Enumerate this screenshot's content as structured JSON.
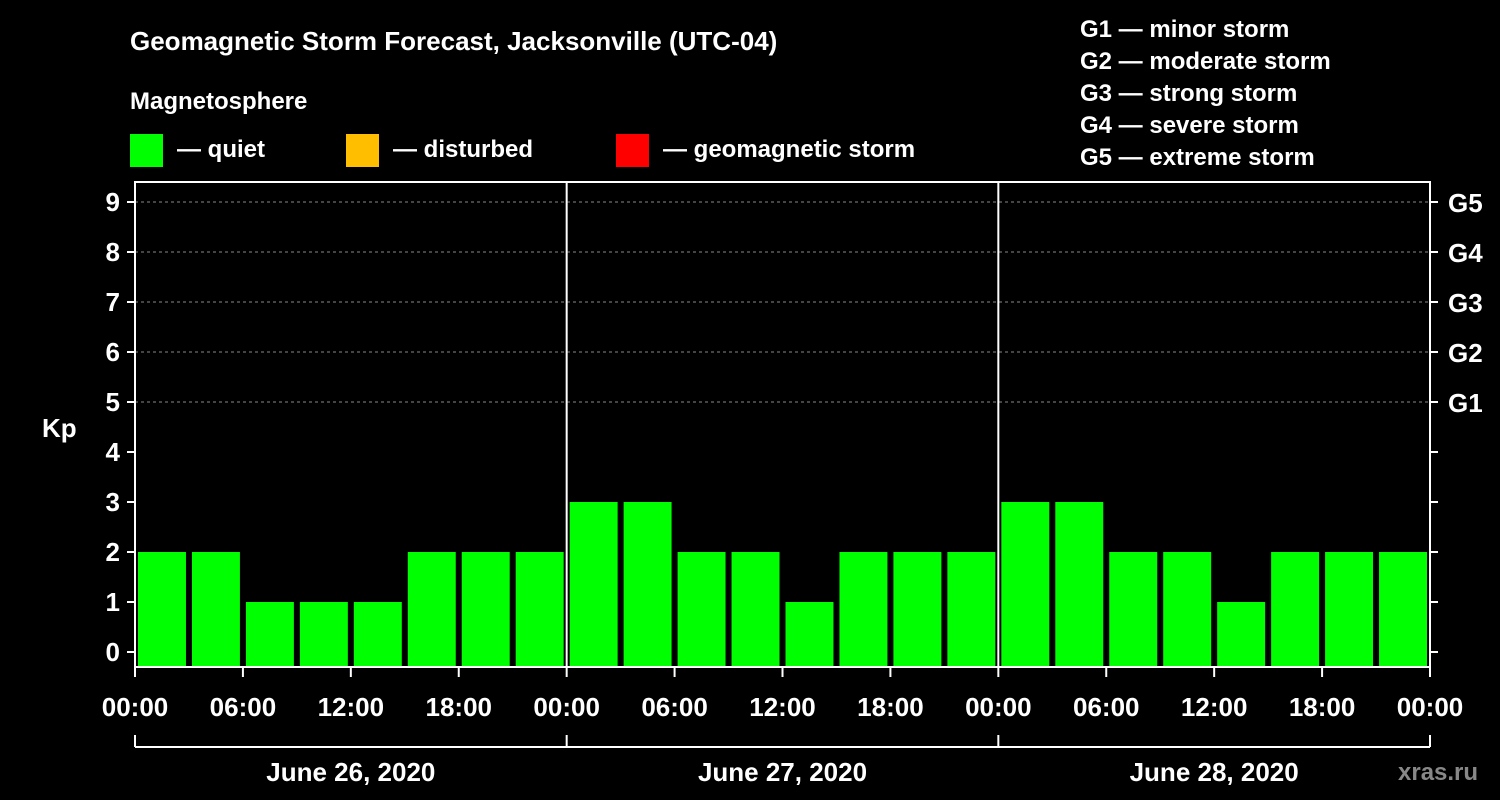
{
  "chart_data": {
    "type": "bar",
    "title": "Geomagnetic Storm Forecast, Jacksonville (UTC-04)",
    "legend_title": "Magnetosphere",
    "legend": [
      {
        "label": "— quiet",
        "color": "#00ff00"
      },
      {
        "label": "— disturbed",
        "color": "#ffbf00"
      },
      {
        "label": "— geomagnetic storm",
        "color": "#ff0000"
      }
    ],
    "g_scale": [
      "G1 — minor storm",
      "G2 — moderate storm",
      "G3 — strong storm",
      "G4 — severe storm",
      "G5 — extreme storm"
    ],
    "ylabel": "Kp",
    "ylim": [
      0,
      9
    ],
    "y_ticks": [
      0,
      1,
      2,
      3,
      4,
      5,
      6,
      7,
      8,
      9
    ],
    "right_labels": [
      {
        "kp": 5,
        "label": "G1"
      },
      {
        "kp": 6,
        "label": "G2"
      },
      {
        "kp": 7,
        "label": "G3"
      },
      {
        "kp": 8,
        "label": "G4"
      },
      {
        "kp": 9,
        "label": "G5"
      }
    ],
    "grid": true,
    "x_hours_range": [
      0,
      72
    ],
    "x_tick_labels": [
      "00:00",
      "06:00",
      "12:00",
      "18:00",
      "00:00",
      "06:00",
      "12:00",
      "18:00",
      "00:00",
      "06:00",
      "12:00",
      "18:00",
      "00:00"
    ],
    "days": [
      "June 26, 2020",
      "June 27, 2020",
      "June 28, 2020"
    ],
    "bar_color": "#00ff00",
    "values": [
      2,
      2,
      1,
      1,
      1,
      2,
      2,
      2,
      3,
      3,
      2,
      2,
      1,
      2,
      2,
      2,
      3,
      3,
      2,
      2,
      1,
      2,
      2,
      2
    ]
  },
  "watermark": "xras.ru"
}
